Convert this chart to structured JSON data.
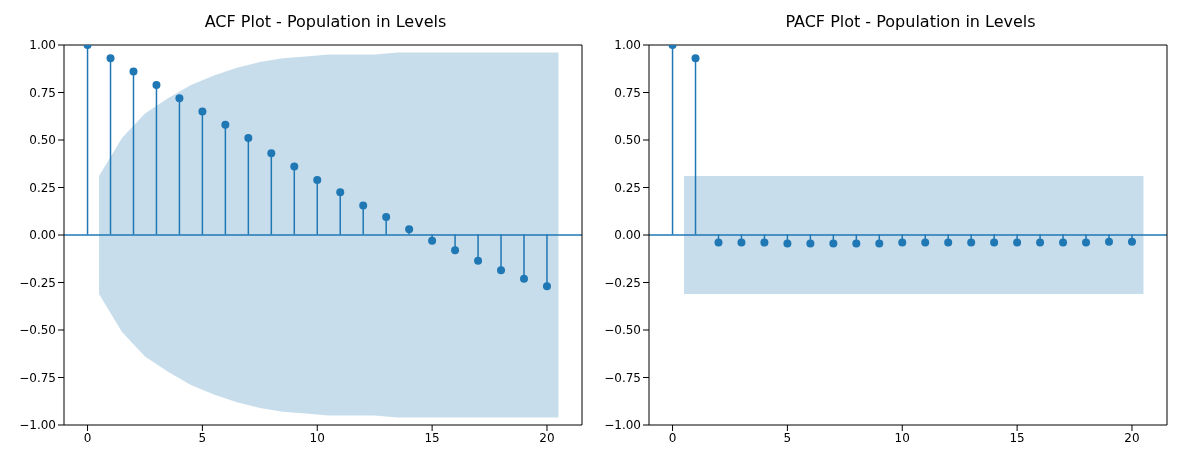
{
  "chart_data": [
    {
      "type": "lollipop",
      "title": "ACF Plot - Population in Levels",
      "xlim": [
        -1.025,
        21.525
      ],
      "xticks": [
        0,
        5,
        10,
        15,
        20
      ],
      "ylim": [
        -1,
        1
      ],
      "yticks": [
        {
          "value": -1,
          "label": "−1.00"
        },
        {
          "value": -0.75,
          "label": "−0.75"
        },
        {
          "value": -0.5,
          "label": "−0.50"
        },
        {
          "value": -0.25,
          "label": "−0.25"
        },
        {
          "value": 0,
          "label": "0.00"
        },
        {
          "value": 0.25,
          "label": "0.25"
        },
        {
          "value": 0.5,
          "label": "0.50"
        },
        {
          "value": 0.75,
          "label": "0.75"
        },
        {
          "value": 1,
          "label": "1.00"
        }
      ],
      "series": [
        {
          "type": "line",
          "marker": "none",
          "color": "#1f77b4",
          "x": [
            -1.025,
            0.5,
            1.5,
            2.5,
            3.5,
            4.5,
            5.5,
            6.5,
            7.5,
            8.5,
            9.5,
            10.5,
            11.5,
            12.5,
            13.5,
            14.5,
            15.5,
            16.5,
            17.5,
            18.5,
            19.5,
            20.5,
            21.525
          ],
          "values": [
            0,
            0,
            0,
            0,
            0,
            0,
            0,
            0,
            0,
            0,
            0,
            0,
            0,
            0,
            0,
            0,
            0,
            0,
            0,
            0,
            0,
            0,
            0
          ],
          "lower": [
            null,
            -0.31,
            -0.51,
            -0.64,
            -0.72,
            -0.79,
            -0.84,
            -0.88,
            -0.91,
            -0.93,
            -0.94,
            -0.95,
            -0.95,
            -0.95,
            -0.96,
            -0.96,
            -0.96,
            -0.96,
            -0.96,
            -0.96,
            -0.96,
            -0.96,
            null
          ],
          "upper": [
            null,
            0.31,
            0.51,
            0.64,
            0.72,
            0.79,
            0.84,
            0.88,
            0.91,
            0.93,
            0.94,
            0.95,
            0.95,
            0.95,
            0.96,
            0.96,
            0.96,
            0.96,
            0.96,
            0.96,
            0.96,
            0.96,
            null
          ]
        },
        {
          "marker": "circle",
          "color": "#1f77b4",
          "x": [
            0,
            1,
            2,
            3,
            4,
            5,
            6,
            7,
            8,
            9,
            10,
            11,
            12,
            13,
            14,
            15,
            16,
            17,
            18,
            19,
            20
          ],
          "values": [
            1.0,
            0.93,
            0.86,
            0.79,
            0.72,
            0.65,
            0.58,
            0.51,
            0.43,
            0.36,
            0.29,
            0.225,
            0.155,
            0.095,
            0.03,
            -0.03,
            -0.08,
            -0.135,
            -0.185,
            -0.23,
            -0.27
          ]
        }
      ]
    },
    {
      "type": "lollipop",
      "title": "PACF Plot - Population in Levels",
      "xlim": [
        -1.025,
        21.525
      ],
      "xticks": [
        0,
        5,
        10,
        15,
        20
      ],
      "ylim": [
        -1,
        1
      ],
      "yticks": [
        {
          "value": -1,
          "label": "−1.00"
        },
        {
          "value": -0.75,
          "label": "−0.75"
        },
        {
          "value": -0.5,
          "label": "−0.50"
        },
        {
          "value": -0.25,
          "label": "−0.25"
        },
        {
          "value": 0,
          "label": "0.00"
        },
        {
          "value": 0.25,
          "label": "0.25"
        },
        {
          "value": 0.5,
          "label": "0.50"
        },
        {
          "value": 0.75,
          "label": "0.75"
        },
        {
          "value": 1,
          "label": "1.00"
        }
      ],
      "series": [
        {
          "type": "line",
          "marker": "none",
          "color": "#1f77b4",
          "x": [
            -1.025,
            0.5,
            20.5,
            21.525
          ],
          "values": [
            0,
            0,
            0,
            0
          ],
          "lower": [
            null,
            -0.31,
            -0.31,
            null
          ],
          "upper": [
            null,
            0.31,
            0.31,
            null
          ]
        },
        {
          "marker": "circle",
          "color": "#1f77b4",
          "x": [
            0,
            1,
            2,
            3,
            4,
            5,
            6,
            7,
            8,
            9,
            10,
            11,
            12,
            13,
            14,
            15,
            16,
            17,
            18,
            19,
            20
          ],
          "values": [
            1.0,
            0.93,
            -0.04,
            -0.04,
            -0.04,
            -0.045,
            -0.045,
            -0.045,
            -0.045,
            -0.045,
            -0.04,
            -0.04,
            -0.04,
            -0.04,
            -0.04,
            -0.04,
            -0.04,
            -0.04,
            -0.04,
            -0.035,
            -0.035
          ]
        }
      ]
    }
  ]
}
